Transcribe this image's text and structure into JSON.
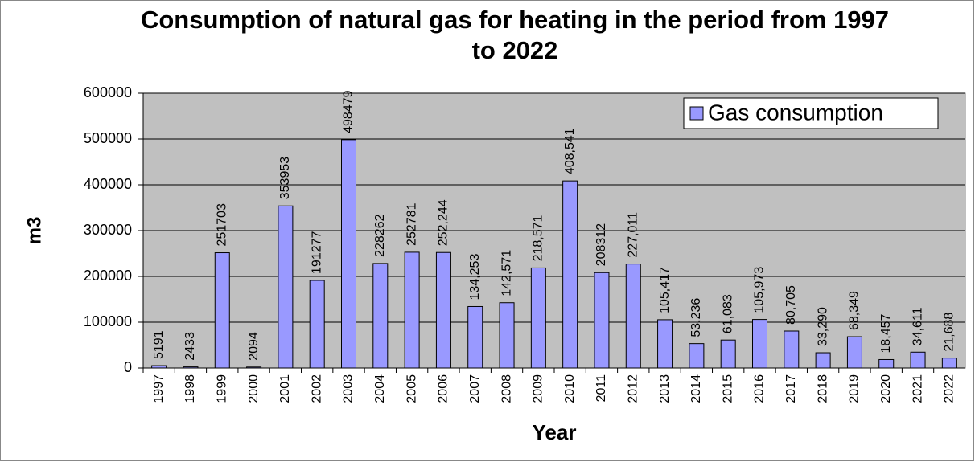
{
  "chart_data": {
    "type": "bar",
    "title": "Consumption of natural gas for heating in the period from 1997 to 2022",
    "x_label": "Year",
    "y_label": "m3",
    "categories": [
      "1997",
      "1998",
      "1999",
      "2000",
      "2001",
      "2002",
      "2003",
      "2004",
      "2005",
      "2006",
      "2007",
      "2008",
      "2009",
      "2010",
      "2011",
      "2012",
      "2013",
      "2014",
      "2015",
      "2016",
      "2017",
      "2018",
      "2019",
      "2020",
      "2021",
      "2022"
    ],
    "series": [
      {
        "name": "Gas consumption",
        "color": "#9999ff",
        "values": [
          5191,
          2433,
          251703,
          2094,
          353953,
          191277,
          498479,
          228262,
          252781,
          252244,
          134253,
          142571,
          218571,
          408541,
          208312,
          227011,
          105417,
          53236,
          61083,
          105973,
          80705,
          33290,
          68349,
          18457,
          34611,
          21688
        ],
        "value_labels": [
          "5191",
          "2433",
          "251703",
          "2094",
          "353953",
          "191277",
          "498479",
          "228262",
          "252781",
          "252,244",
          "134,253",
          "142,571",
          "218,571",
          "408,541",
          "208312",
          "227,011",
          "105,417",
          "53,236",
          "61,083",
          "105,973",
          "80,705",
          "33,290",
          "68,349",
          "18,457",
          "34,611",
          "21,688"
        ]
      }
    ],
    "ylim": [
      0,
      600000
    ],
    "yticks": [
      0,
      100000,
      200000,
      300000,
      400000,
      500000,
      600000
    ],
    "grid": true,
    "legend": "top-right",
    "plot_background": "#c0c0c0"
  }
}
